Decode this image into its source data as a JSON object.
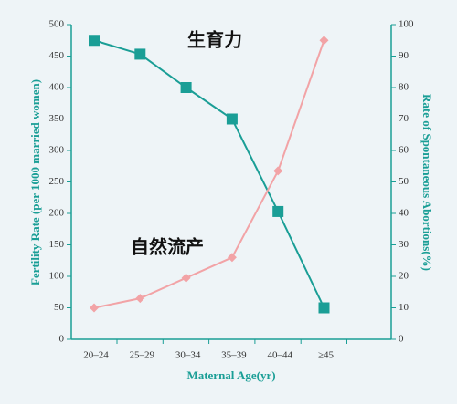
{
  "chart_data": {
    "type": "line",
    "x_label": "Maternal Age(yr)",
    "y_label": "Fertility Rate (per 1000 married women)",
    "y2_label": "Rate of Spontaneous Abortions(%)",
    "categories": [
      "20–24",
      "25–29",
      "30–34",
      "35–39",
      "40–44",
      "≥45"
    ],
    "series": [
      {
        "name": "生育力",
        "color": "#1a9e96",
        "marker": "square",
        "values": [
          475,
          453,
          400,
          350,
          203,
          50
        ]
      },
      {
        "name": "自然流产",
        "color": "#f2a3a6",
        "marker": "diamond",
        "axis": "y2",
        "values": [
          10,
          13,
          19.5,
          26,
          53.5,
          95
        ]
      }
    ],
    "ylim": [
      0,
      500
    ],
    "yticks": [
      0,
      50,
      100,
      150,
      200,
      250,
      300,
      350,
      400,
      450,
      500
    ],
    "y2lim": [
      0,
      100
    ],
    "y2ticks": [
      0,
      10,
      20,
      30,
      40,
      50,
      60,
      70,
      80,
      90,
      100
    ],
    "axis_color": "#1a9e96"
  }
}
